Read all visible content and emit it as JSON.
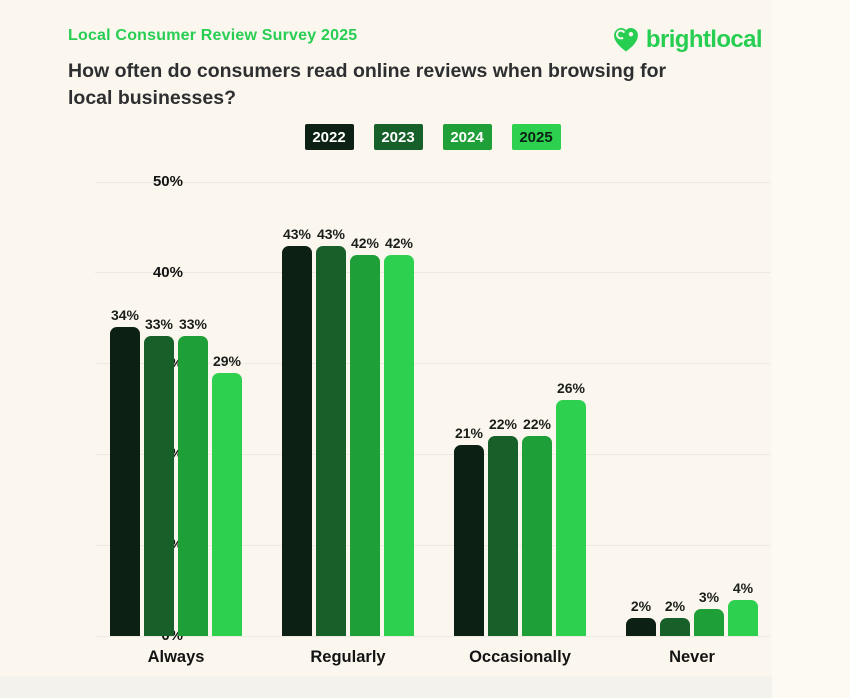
{
  "page": {
    "eyebrow": "Local Consumer Review Survey 2025",
    "question_line1": "How often do consumers read online reviews when browsing for",
    "question_line2": "local businesses?",
    "brand": "brightlocal"
  },
  "colors": {
    "background": "#FBF7EF",
    "brand_green": "#27CE52",
    "question_text": "#2E2F31",
    "gridline": "#ECE9E1",
    "value_label": "#1B1F1A"
  },
  "chart_data": {
    "type": "bar",
    "title": "How often do consumers read online reviews when browsing for local businesses?",
    "categories": [
      "Always",
      "Regularly",
      "Occasionally",
      "Never"
    ],
    "series": [
      {
        "name": "2022",
        "color": "#0C2013",
        "label_color": "#FFFFFF",
        "values": [
          34,
          43,
          21,
          2
        ]
      },
      {
        "name": "2023",
        "color": "#17602A",
        "label_color": "#FFFFFF",
        "values": [
          33,
          43,
          22,
          2
        ]
      },
      {
        "name": "2024",
        "color": "#1F9F37",
        "label_color": "#FFFFFF",
        "values": [
          33,
          42,
          22,
          3
        ]
      },
      {
        "name": "2025",
        "color": "#2ED14F",
        "label_color": "#0C2013",
        "values": [
          29,
          42,
          26,
          4
        ]
      }
    ],
    "y_ticks": [
      "0%",
      "10%",
      "20%",
      "30%",
      "40%",
      "50%"
    ],
    "ylim": [
      0,
      50
    ],
    "value_suffix": "%",
    "xlabel": "",
    "ylabel": "",
    "grid": true,
    "legend_position": "top-center"
  }
}
